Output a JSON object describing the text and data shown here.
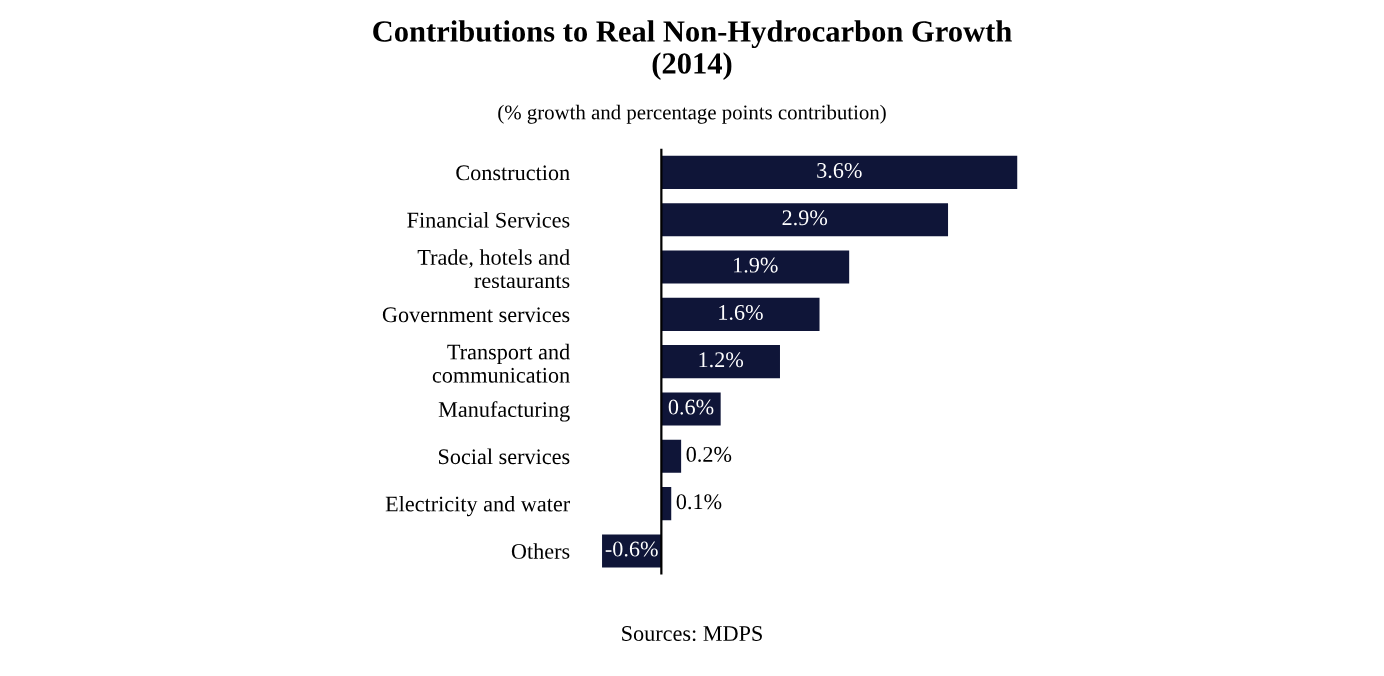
{
  "chart_data": {
    "type": "bar",
    "orientation": "horizontal",
    "title": "Contributions to Real Non-Hydrocarbon Growth\n(2014)",
    "subtitle": "(% growth and percentage points contribution)",
    "categories": [
      "Construction",
      "Financial Services",
      "Trade, hotels and\nrestaurants",
      "Government services",
      "Transport and\ncommunication",
      "Manufacturing",
      "Social services",
      "Electricity and water",
      "Others"
    ],
    "values": [
      3.6,
      2.9,
      1.9,
      1.6,
      1.2,
      0.6,
      0.2,
      0.1,
      -0.6
    ],
    "value_labels": [
      "3.6%",
      "2.9%",
      "1.9%",
      "1.6%",
      "1.2%",
      "0.6%",
      "0.2%",
      "0.1%",
      "-0.6%"
    ],
    "color": "#0f1538",
    "tick_labels": "y",
    "annotations": [
      "Sources: MDPS"
    ]
  }
}
